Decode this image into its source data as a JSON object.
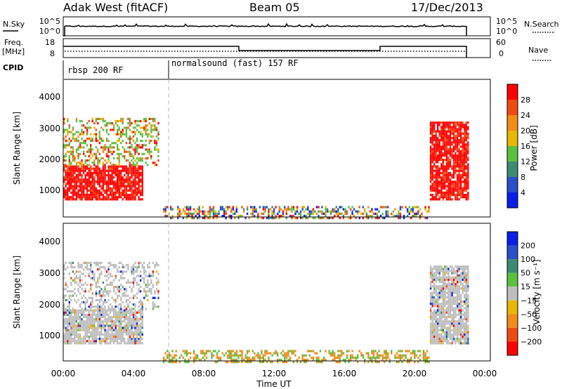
{
  "header": {
    "radar": "Adak West (fitACF)",
    "beam": "Beam 05",
    "date": "17/Dec/2013"
  },
  "strip": {
    "nsky_label": "N.Sky",
    "nsky_ticks": [
      "10^5",
      "10^0"
    ],
    "nsearch_label": "N.Search",
    "freq_label_1": "Freq.",
    "freq_label_2": "[MHz]",
    "freq_ticks": [
      "18",
      "8"
    ],
    "nave_label": "Nave",
    "nave_ticks": [
      "60",
      "0"
    ],
    "cpid_label": "CPID",
    "cpid_segments": [
      "rbsp 200 RF",
      "normalsound (fast) 157 RF"
    ]
  },
  "colors": {
    "power": [
      "#0a1ee6",
      "#2a4fc8",
      "#3d8a74",
      "#5bbf3f",
      "#e6b800",
      "#f08c18",
      "#f04a14",
      "#ff0000"
    ],
    "velocity": [
      "#ff0000",
      "#f04a14",
      "#f08c18",
      "#e6b800",
      "#bebebe",
      "#5bbf3f",
      "#3d8a74",
      "#2a4fc8",
      "#0a1ee6"
    ]
  },
  "chart_data": [
    {
      "type": "heatmap",
      "title": "Power",
      "xlabel": "Time UT",
      "ylabel": "Slant Range [km]",
      "x_ticks": [
        "00:00",
        "04:00",
        "08:00",
        "12:00",
        "16:00",
        "20:00",
        "00:00"
      ],
      "y_ticks": [
        "1000",
        "2000",
        "3000",
        "4000"
      ],
      "y_range": [
        200,
        4600
      ],
      "colorbar_label": "Power [dB]",
      "colorbar_ticks": [
        "4",
        "8",
        "12",
        "16",
        "20",
        "24",
        "28"
      ],
      "regions": [
        {
          "t0": 0.0,
          "t1": 4.5,
          "r0": 800,
          "r1": 1900,
          "level": "high"
        },
        {
          "t0": 0.0,
          "t1": 5.3,
          "r0": 1900,
          "r1": 3400,
          "level": "mixed"
        },
        {
          "t0": 5.6,
          "t1": 20.6,
          "r0": 200,
          "r1": 600,
          "level": "low"
        },
        {
          "t0": 20.6,
          "t1": 22.8,
          "r0": 800,
          "r1": 3300,
          "level": "high"
        }
      ]
    },
    {
      "type": "heatmap",
      "title": "Velocity",
      "xlabel": "Time UT",
      "ylabel": "Slant Range [km]",
      "x_ticks": [
        "00:00",
        "04:00",
        "08:00",
        "12:00",
        "16:00",
        "20:00",
        "00:00"
      ],
      "y_ticks": [
        "1000",
        "2000",
        "3000",
        "4000"
      ],
      "y_range": [
        200,
        4600
      ],
      "colorbar_label": "Velocity [m s⁻¹]",
      "colorbar_ticks": [
        "200",
        "100",
        "50",
        "15",
        "−15",
        "−50",
        "−100",
        "−200"
      ]
    }
  ]
}
